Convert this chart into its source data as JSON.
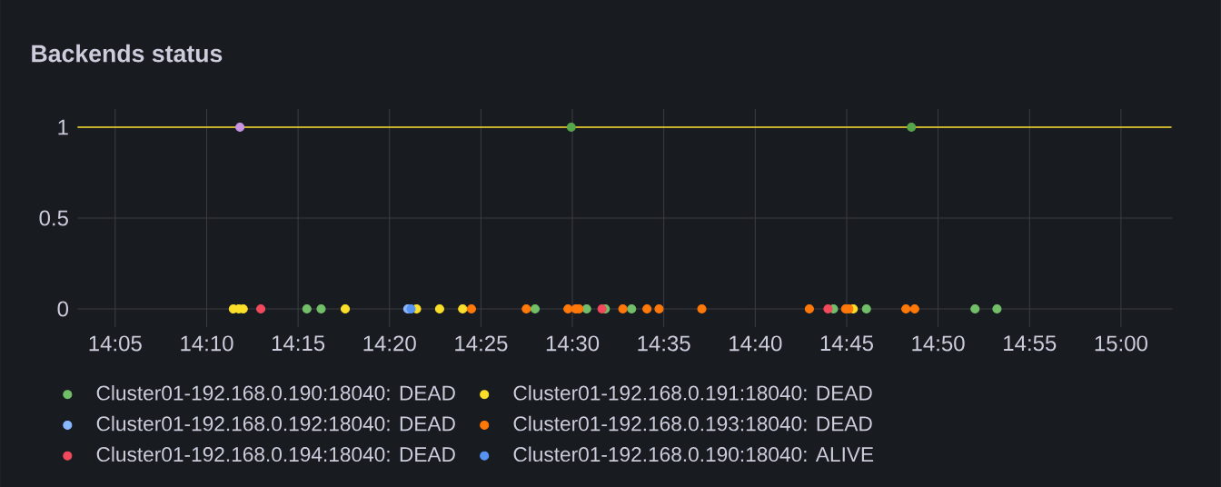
{
  "chart_data": {
    "type": "scatter",
    "title": "Backends status",
    "xlim": [
      14.049,
      15.047
    ],
    "ylim": [
      -0.1,
      1.1
    ],
    "xticks": [
      {
        "value": 14.0833,
        "label": "14:05"
      },
      {
        "value": 14.1667,
        "label": "14:10"
      },
      {
        "value": 14.25,
        "label": "14:15"
      },
      {
        "value": 14.3333,
        "label": "14:20"
      },
      {
        "value": 14.4167,
        "label": "14:25"
      },
      {
        "value": 14.5,
        "label": "14:30"
      },
      {
        "value": 14.5833,
        "label": "14:35"
      },
      {
        "value": 14.6667,
        "label": "14:40"
      },
      {
        "value": 14.75,
        "label": "14:45"
      },
      {
        "value": 14.8333,
        "label": "14:50"
      },
      {
        "value": 14.9167,
        "label": "14:55"
      },
      {
        "value": 15.0,
        "label": "15:00"
      }
    ],
    "yticks": [
      0,
      0.5,
      1
    ],
    "grid": true,
    "legend": "bottom",
    "series": [
      {
        "type": "line",
        "color": "#fade2a",
        "x": [
          14.049,
          15.046
        ],
        "values": [
          1,
          1
        ]
      },
      {
        "color": "#ca95e5",
        "x": [
          14.197
        ],
        "values": [
          1
        ]
      },
      {
        "color": "#56a64b",
        "x": [
          14.499,
          14.809
        ],
        "values": [
          1,
          1
        ]
      },
      {
        "name": "Cluster01-192.168.0.190:18040: DEAD",
        "color": "#73bf69",
        "x": [
          14.258,
          14.271,
          14.466,
          14.513,
          14.53,
          14.554,
          14.738,
          14.768,
          14.867,
          14.887
        ],
        "values": [
          0,
          0,
          0,
          0,
          0,
          0,
          0,
          0,
          0,
          0
        ]
      },
      {
        "name": "Cluster01-192.168.0.191:18040: DEAD",
        "color": "#fade2a",
        "x": [
          14.191,
          14.196,
          14.2,
          14.293,
          14.358,
          14.379,
          14.4,
          14.756
        ],
        "values": [
          0,
          0,
          0,
          0,
          0,
          0,
          0,
          0
        ]
      },
      {
        "name": "Cluster01-192.168.0.192:18040: DEAD",
        "color": "#8ab8ff",
        "x": [
          14.35
        ],
        "values": [
          0
        ]
      },
      {
        "name": "Cluster01-192.168.0.193:18040: DEAD",
        "color": "#ff780a",
        "x": [
          14.408,
          14.458,
          14.496,
          14.503,
          14.506,
          14.546,
          14.568,
          14.579,
          14.618,
          14.716,
          14.749,
          14.752,
          14.804,
          14.812
        ],
        "values": [
          0,
          0,
          0,
          0,
          0,
          0,
          0,
          0,
          0,
          0,
          0,
          0,
          0,
          0
        ]
      },
      {
        "name": "Cluster01-192.168.0.194:18040: DEAD",
        "color": "#f2495c",
        "x": [
          14.216,
          14.527,
          14.733
        ],
        "values": [
          0,
          0,
          0
        ]
      },
      {
        "name": "Cluster01-192.168.0.190:18040: ALIVE",
        "color": "#5794f2",
        "x": [
          14.353
        ],
        "values": [
          0
        ]
      }
    ]
  }
}
